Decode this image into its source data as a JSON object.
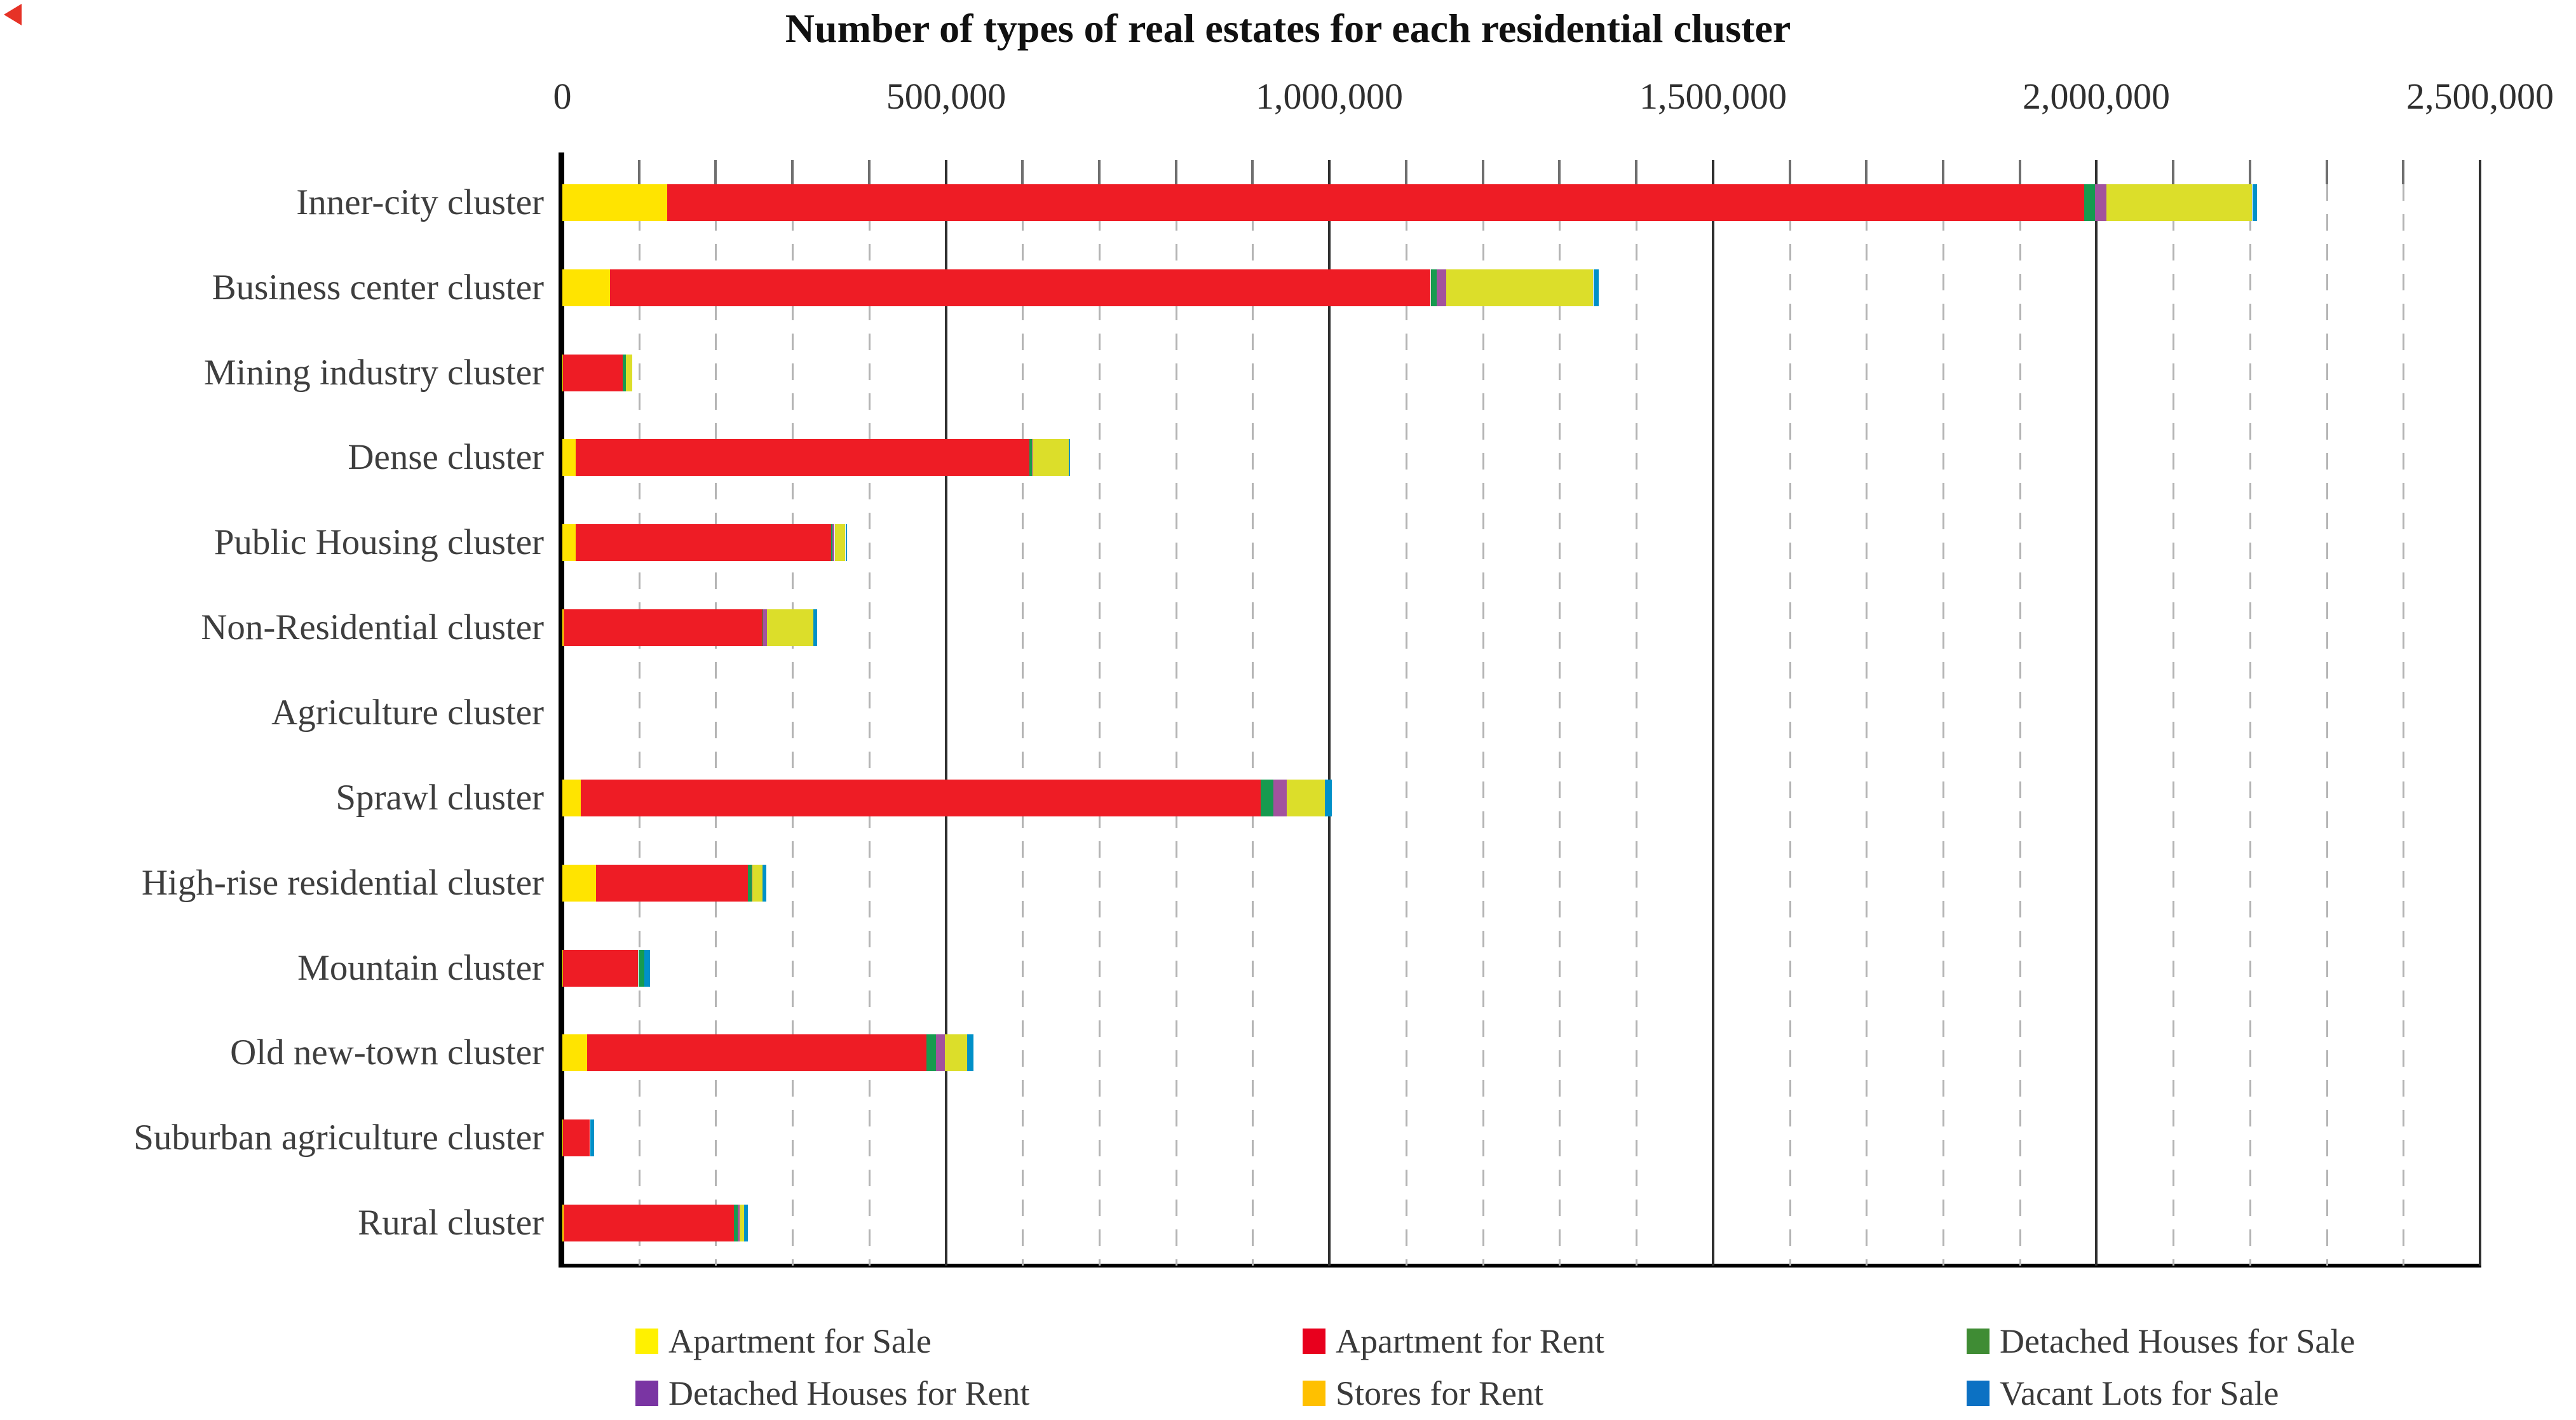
{
  "title": "Number of types of real estates for each residential cluster",
  "axis": {
    "min": 0,
    "max": 2500000,
    "major_step": 500000,
    "minor_step": 100000,
    "tick_labels": [
      "0",
      "500,000",
      "1,000,000",
      "1,500,000",
      "2,000,000",
      "2,500,000"
    ]
  },
  "chart_data": {
    "type": "bar",
    "orientation": "horizontal-stacked",
    "title": "Number of types of real estates for each residential cluster",
    "xlabel": "",
    "ylabel": "",
    "xlim": [
      0,
      2500000
    ],
    "grid": "minor-dashed-major-solid",
    "legend_position": "bottom",
    "categories": [
      "Inner-city cluster",
      "Business center cluster",
      "Mining industry cluster",
      "Dense cluster",
      "Public Housing cluster",
      "Non-Residential cluster",
      "Agriculture cluster",
      "Sprawl cluster",
      "High-rise residential cluster",
      "Mountain cluster",
      "Old new-town cluster",
      "Suburban agriculture cluster",
      "Rural cluster"
    ],
    "series": [
      {
        "name": "Apartment for Sale",
        "legend_color": "#FFF100",
        "bar_color": "#FFE400",
        "values": [
          137000,
          62000,
          1000,
          17000,
          17000,
          2000,
          0,
          24000,
          44000,
          1000,
          32000,
          1000,
          2000
        ]
      },
      {
        "name": "Apartment for Rent",
        "legend_color": "#E8001D",
        "bar_color": "#EE1C25",
        "values": [
          1847000,
          1070000,
          78000,
          592000,
          333000,
          259000,
          0,
          886000,
          198000,
          98000,
          443000,
          35000,
          222000
        ]
      },
      {
        "name": "Detached Houses for Sale",
        "legend_color": "#3F8C34",
        "bar_color": "#169B4F",
        "values": [
          14000,
          8000,
          4000,
          3000,
          2000,
          1000,
          0,
          17000,
          5000,
          8000,
          12000,
          0,
          5000
        ]
      },
      {
        "name": "Detached Houses for Rent",
        "legend_color": "#7A35A3",
        "bar_color": "#A2539E",
        "values": [
          15000,
          12000,
          0,
          1000,
          3000,
          5000,
          0,
          17000,
          1000,
          0,
          12000,
          0,
          2000
        ]
      },
      {
        "name": "Stores for Rent",
        "legend_color": "#FFC000",
        "bar_color": "#DCDE2A",
        "values": [
          190000,
          192000,
          8000,
          47000,
          14000,
          60000,
          0,
          50000,
          13000,
          0,
          29000,
          0,
          6000
        ]
      },
      {
        "name": "Vacant Lots for Sale",
        "legend_color": "#0C71C3",
        "bar_color": "#0090C8",
        "values": [
          6000,
          7000,
          0,
          2000,
          1000,
          5000,
          0,
          9000,
          5000,
          7000,
          8000,
          5000,
          5000
        ]
      }
    ]
  }
}
